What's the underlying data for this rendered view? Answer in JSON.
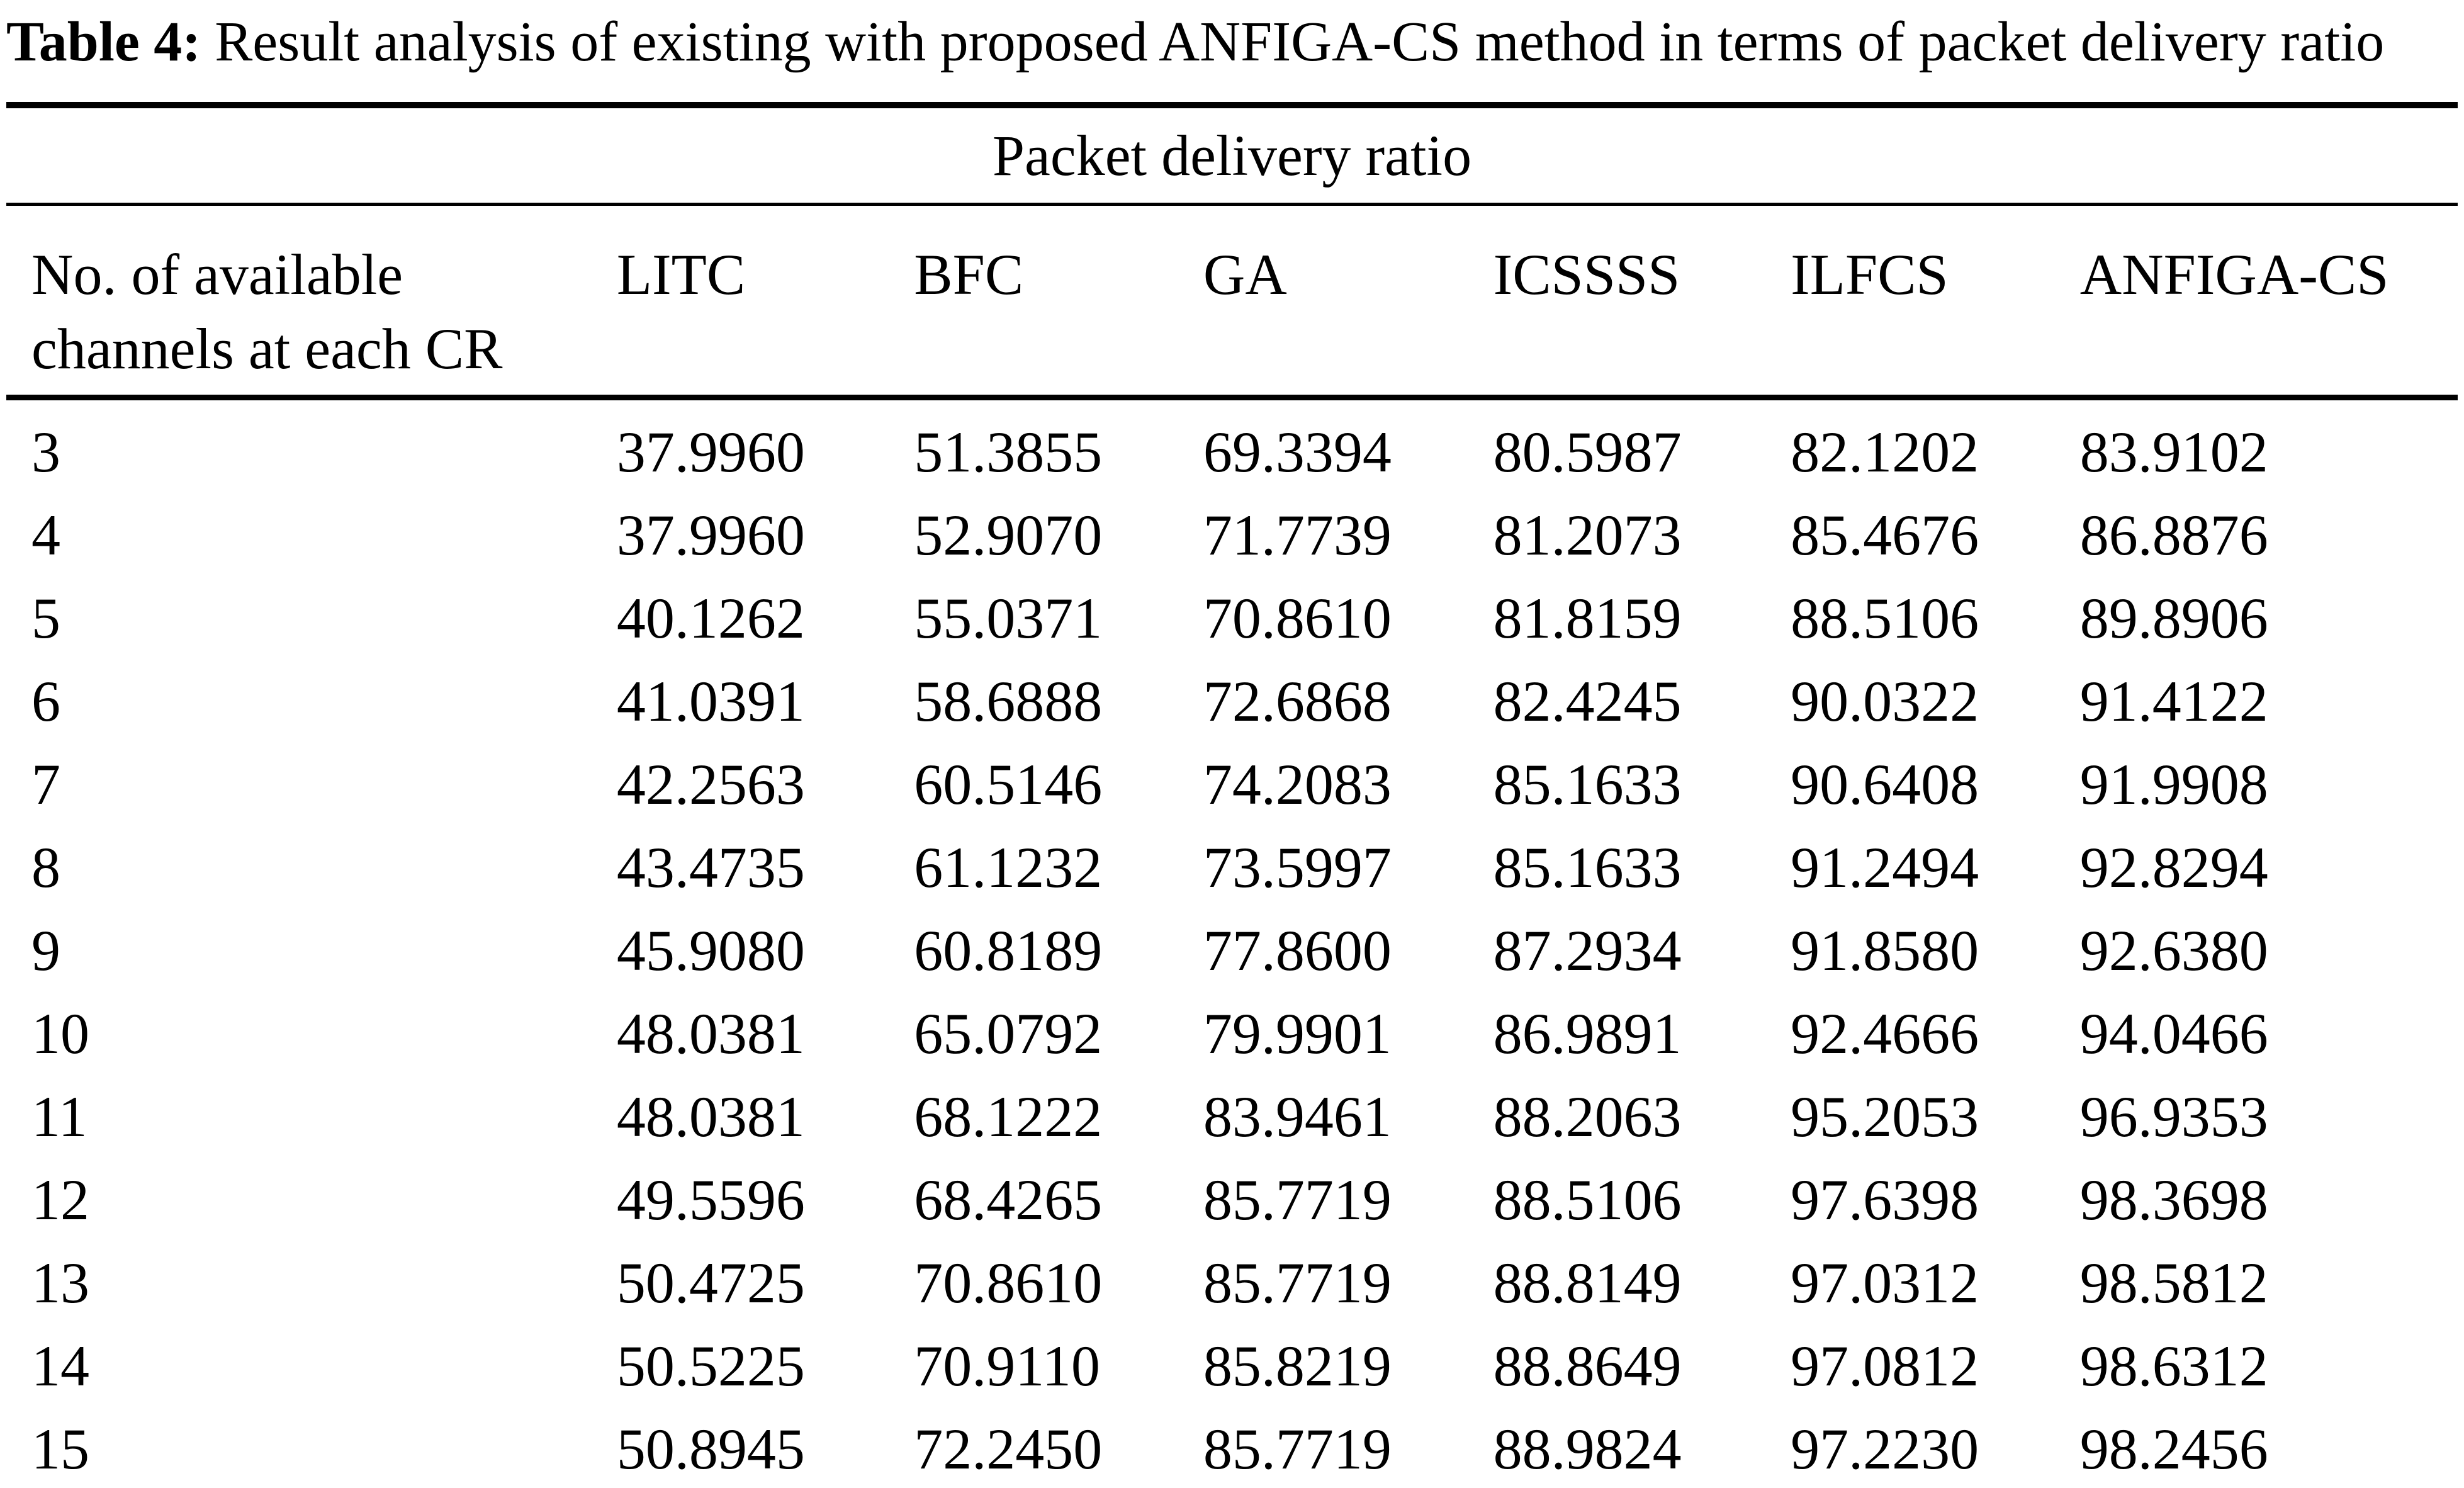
{
  "caption": {
    "label": "Table 4:",
    "text": "Result analysis of existing with proposed ANFIGA-CS method in terms of packet delivery ratio"
  },
  "table": {
    "span_header": "Packet delivery ratio",
    "stub_header": {
      "line1": "No. of available",
      "line2": "channels at each CR"
    },
    "value_columns": [
      "LITC",
      "BFC",
      "GA",
      "ICSSSS",
      "ILFCS",
      "ANFIGA-CS"
    ],
    "rows": [
      {
        "channels": "3",
        "values": [
          "37.9960",
          "51.3855",
          "69.3394",
          "80.5987",
          "82.1202",
          "83.9102"
        ]
      },
      {
        "channels": "4",
        "values": [
          "37.9960",
          "52.9070",
          "71.7739",
          "81.2073",
          "85.4676",
          "86.8876"
        ]
      },
      {
        "channels": "5",
        "values": [
          "40.1262",
          "55.0371",
          "70.8610",
          "81.8159",
          "88.5106",
          "89.8906"
        ]
      },
      {
        "channels": "6",
        "values": [
          "41.0391",
          "58.6888",
          "72.6868",
          "82.4245",
          "90.0322",
          "91.4122"
        ]
      },
      {
        "channels": "7",
        "values": [
          "42.2563",
          "60.5146",
          "74.2083",
          "85.1633",
          "90.6408",
          "91.9908"
        ]
      },
      {
        "channels": "8",
        "values": [
          "43.4735",
          "61.1232",
          "73.5997",
          "85.1633",
          "91.2494",
          "92.8294"
        ]
      },
      {
        "channels": "9",
        "values": [
          "45.9080",
          "60.8189",
          "77.8600",
          "87.2934",
          "91.8580",
          "92.6380"
        ]
      },
      {
        "channels": "10",
        "values": [
          "48.0381",
          "65.0792",
          "79.9901",
          "86.9891",
          "92.4666",
          "94.0466"
        ]
      },
      {
        "channels": "11",
        "values": [
          "48.0381",
          "68.1222",
          "83.9461",
          "88.2063",
          "95.2053",
          "96.9353"
        ]
      },
      {
        "channels": "12",
        "values": [
          "49.5596",
          "68.4265",
          "85.7719",
          "88.5106",
          "97.6398",
          "98.3698"
        ]
      },
      {
        "channels": "13",
        "values": [
          "50.4725",
          "70.8610",
          "85.7719",
          "88.8149",
          "97.0312",
          "98.5812"
        ]
      },
      {
        "channels": "14",
        "values": [
          "50.5225",
          "70.9110",
          "85.8219",
          "88.8649",
          "97.0812",
          "98.6312"
        ]
      },
      {
        "channels": "15",
        "values": [
          "50.8945",
          "72.2450",
          "85.7719",
          "88.9824",
          "97.2230",
          "98.2456"
        ]
      }
    ]
  }
}
